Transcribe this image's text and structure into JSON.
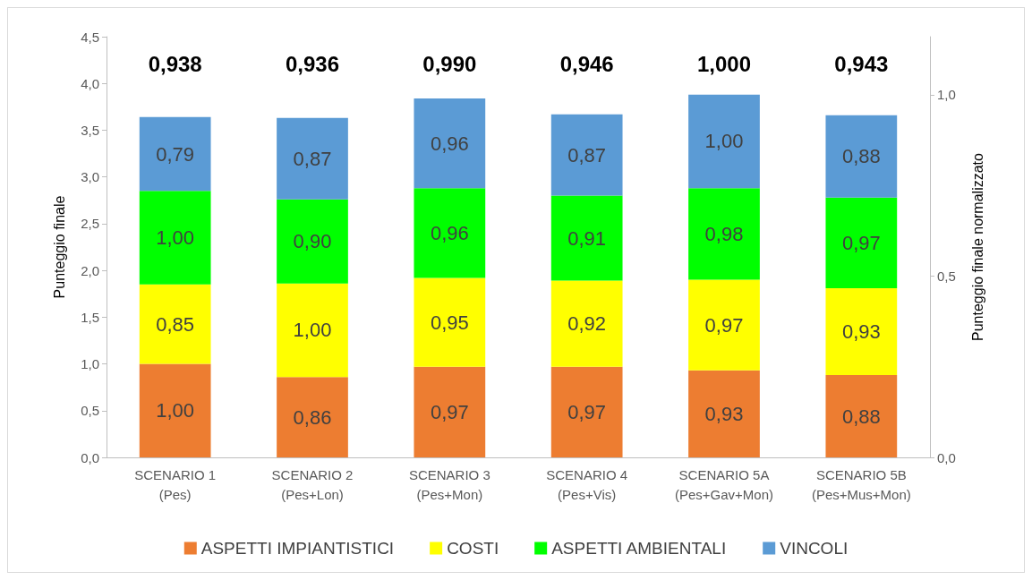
{
  "chart_data": {
    "type": "bar",
    "stacked": true,
    "ylabel": "Punteggio finale",
    "y2label": "Punteggio finale normalizzato",
    "categories": [
      "SCENARIO 1\n(Pes)",
      "SCENARIO 2\n(Pes+Lon)",
      "SCENARIO 3\n(Pes+Mon)",
      "SCENARIO 4\n(Pes+Vis)",
      "SCENARIO 5A\n(Pes+Gav+Mon)",
      "SCENARIO 5B\n(Pes+Mus+Mon)"
    ],
    "series": [
      {
        "name": "ASPETTI IMPIANTISTICI",
        "color": "#ed7d31",
        "values": [
          1.0,
          0.86,
          0.97,
          0.97,
          0.93,
          0.88
        ],
        "value_labels": [
          "1,00",
          "0,86",
          "0,97",
          "0,97",
          "0,93",
          "0,88"
        ]
      },
      {
        "name": "COSTI",
        "color": "#ffff00",
        "values": [
          0.85,
          1.0,
          0.95,
          0.92,
          0.97,
          0.93
        ],
        "value_labels": [
          "0,85",
          "1,00",
          "0,95",
          "0,92",
          "0,97",
          "0,93"
        ]
      },
      {
        "name": "ASPETTI AMBIENTALI",
        "color": "#00ff00",
        "values": [
          1.0,
          0.9,
          0.96,
          0.91,
          0.98,
          0.97
        ],
        "value_labels": [
          "1,00",
          "0,90",
          "0,96",
          "0,91",
          "0,98",
          "0,97"
        ]
      },
      {
        "name": "VINCOLI",
        "color": "#5b9bd5",
        "values": [
          0.79,
          0.87,
          0.96,
          0.87,
          1.0,
          0.88
        ],
        "value_labels": [
          "0,79",
          "0,87",
          "0,96",
          "0,87",
          "1,00",
          "0,88"
        ]
      }
    ],
    "annotations": [
      "0,938",
      "0,936",
      "0,990",
      "0,946",
      "1,000",
      "0,943"
    ],
    "ylim": [
      0,
      4.5
    ],
    "yticks": [
      {
        "value": 0,
        "label": "0,0"
      },
      {
        "value": 0.5,
        "label": "0,5"
      },
      {
        "value": 1,
        "label": "1,0"
      },
      {
        "value": 1.5,
        "label": "1,5"
      },
      {
        "value": 2,
        "label": "2,0"
      },
      {
        "value": 2.5,
        "label": "2,5"
      },
      {
        "value": 3,
        "label": "3,0"
      },
      {
        "value": 3.5,
        "label": "3,5"
      },
      {
        "value": 4,
        "label": "4,0"
      },
      {
        "value": 4.5,
        "label": "4,5"
      }
    ],
    "y2lim": [
      0,
      1.16
    ],
    "y2ticks": [
      {
        "value": 0,
        "label": "0,0"
      },
      {
        "value": 0.5,
        "label": "0,5"
      },
      {
        "value": 1,
        "label": "1,0"
      }
    ],
    "grid": false,
    "legend": "bottom"
  }
}
